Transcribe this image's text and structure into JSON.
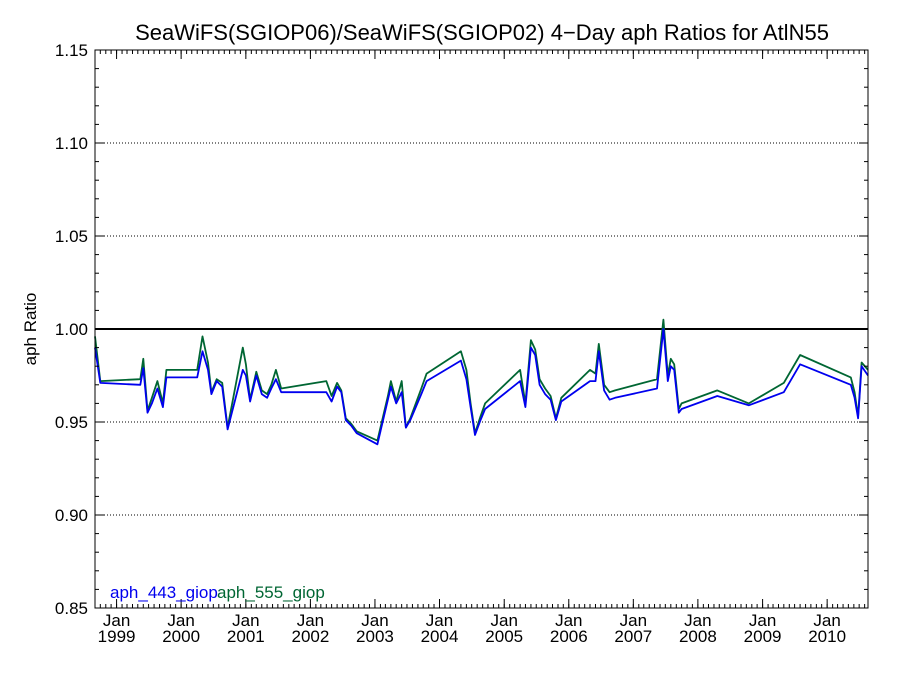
{
  "chart_data": {
    "type": "line",
    "title": "SeaWiFS(SGIOP06)/SeaWiFS(SGIOP02) 4−Day aph Ratios for AtlN55",
    "xlabel": "",
    "ylabel": "aph Ratio",
    "ylim": [
      0.85,
      1.15
    ],
    "xlim": [
      "1998-09-01",
      "2010-08-20"
    ],
    "yticks": [
      "0.85",
      "0.90",
      "0.95",
      "1.00",
      "1.05",
      "1.10",
      "1.15"
    ],
    "xticks": [
      {
        "month": "Jan",
        "year": "1999",
        "date": "1999-01-01"
      },
      {
        "month": "Jan",
        "year": "2000",
        "date": "2000-01-01"
      },
      {
        "month": "Jan",
        "year": "2001",
        "date": "2001-01-01"
      },
      {
        "month": "Jan",
        "year": "2002",
        "date": "2002-01-01"
      },
      {
        "month": "Jan",
        "year": "2003",
        "date": "2003-01-01"
      },
      {
        "month": "Jan",
        "year": "2004",
        "date": "2004-01-01"
      },
      {
        "month": "Jan",
        "year": "2005",
        "date": "2005-01-01"
      },
      {
        "month": "Jan",
        "year": "2006",
        "date": "2006-01-01"
      },
      {
        "month": "Jan",
        "year": "2007",
        "date": "2007-01-01"
      },
      {
        "month": "Jan",
        "year": "2008",
        "date": "2008-01-01"
      },
      {
        "month": "Jan",
        "year": "2009",
        "date": "2009-01-01"
      },
      {
        "month": "Jan",
        "year": "2010",
        "date": "2010-01-01"
      }
    ],
    "reference_line": 1.0,
    "grid": "horizontal dotted",
    "legend_position": "bottom-left",
    "x": [
      "1998-09-01",
      "1998-10-01",
      "1999-05-15",
      "1999-06-01",
      "1999-06-25",
      "1999-07-20",
      "1999-08-20",
      "1999-09-20",
      "1999-10-10",
      "2000-04-01",
      "2000-05-01",
      "2000-06-01",
      "2000-06-20",
      "2000-07-20",
      "2000-08-20",
      "2000-09-20",
      "2000-12-15",
      "2001-01-01",
      "2001-01-25",
      "2001-03-01",
      "2001-04-01",
      "2001-05-01",
      "2001-05-25",
      "2001-06-20",
      "2001-07-20",
      "2002-04-01",
      "2002-05-01",
      "2002-06-01",
      "2002-06-25",
      "2002-07-20",
      "2002-08-20",
      "2002-09-20",
      "2003-01-15",
      "2003-03-15",
      "2003-04-01",
      "2003-05-01",
      "2003-06-01",
      "2003-06-25",
      "2003-07-20",
      "2003-08-20",
      "2003-09-20",
      "2003-10-20",
      "2004-05-01",
      "2004-06-01",
      "2004-06-25",
      "2004-07-20",
      "2004-08-20",
      "2004-09-15",
      "2005-04-01",
      "2005-05-01",
      "2005-06-01",
      "2005-06-25",
      "2005-07-20",
      "2005-08-20",
      "2005-09-20",
      "2005-10-20",
      "2005-11-20",
      "2006-05-01",
      "2006-06-01",
      "2006-06-20",
      "2006-07-20",
      "2006-08-20",
      "2006-09-20",
      "2007-05-15",
      "2007-06-20",
      "2007-07-15",
      "2007-08-01",
      "2007-08-20",
      "2007-09-15",
      "2007-10-01",
      "2008-04-20",
      "2008-10-15",
      "2009-05-01",
      "2009-08-01",
      "2010-05-15",
      "2010-06-05",
      "2010-06-25",
      "2010-07-15",
      "2010-08-20"
    ],
    "series": [
      {
        "name": "aph_443_giop",
        "color": "#0000ee",
        "values": [
          0.99,
          0.971,
          0.97,
          0.979,
          0.955,
          0.96,
          0.968,
          0.958,
          0.974,
          0.974,
          0.988,
          0.978,
          0.965,
          0.972,
          0.969,
          0.946,
          0.978,
          0.975,
          0.961,
          0.975,
          0.965,
          0.963,
          0.968,
          0.973,
          0.966,
          0.966,
          0.961,
          0.969,
          0.966,
          0.951,
          0.948,
          0.944,
          0.938,
          0.962,
          0.969,
          0.96,
          0.966,
          0.947,
          0.951,
          0.958,
          0.965,
          0.972,
          0.983,
          0.973,
          0.958,
          0.943,
          0.951,
          0.957,
          0.972,
          0.958,
          0.99,
          0.986,
          0.97,
          0.965,
          0.962,
          0.951,
          0.961,
          0.972,
          0.972,
          0.988,
          0.967,
          0.962,
          0.963,
          0.968,
          1.0,
          0.972,
          0.98,
          0.978,
          0.955,
          0.957,
          0.964,
          0.959,
          0.966,
          0.981,
          0.97,
          0.963,
          0.952,
          0.98,
          0.975
        ]
      },
      {
        "name": "aph_555_giop",
        "color": "#006633",
        "values": [
          0.996,
          0.972,
          0.973,
          0.984,
          0.956,
          0.963,
          0.972,
          0.96,
          0.978,
          0.978,
          0.996,
          0.982,
          0.966,
          0.973,
          0.971,
          0.947,
          0.99,
          0.981,
          0.962,
          0.977,
          0.967,
          0.965,
          0.97,
          0.978,
          0.968,
          0.972,
          0.964,
          0.971,
          0.967,
          0.952,
          0.949,
          0.945,
          0.94,
          0.964,
          0.972,
          0.961,
          0.972,
          0.947,
          0.952,
          0.96,
          0.968,
          0.976,
          0.988,
          0.978,
          0.96,
          0.944,
          0.953,
          0.96,
          0.978,
          0.96,
          0.994,
          0.989,
          0.973,
          0.968,
          0.964,
          0.952,
          0.963,
          0.978,
          0.976,
          0.992,
          0.97,
          0.966,
          0.967,
          0.973,
          1.005,
          0.975,
          0.984,
          0.981,
          0.957,
          0.96,
          0.967,
          0.96,
          0.971,
          0.986,
          0.974,
          0.966,
          0.953,
          0.982,
          0.978
        ]
      }
    ]
  }
}
